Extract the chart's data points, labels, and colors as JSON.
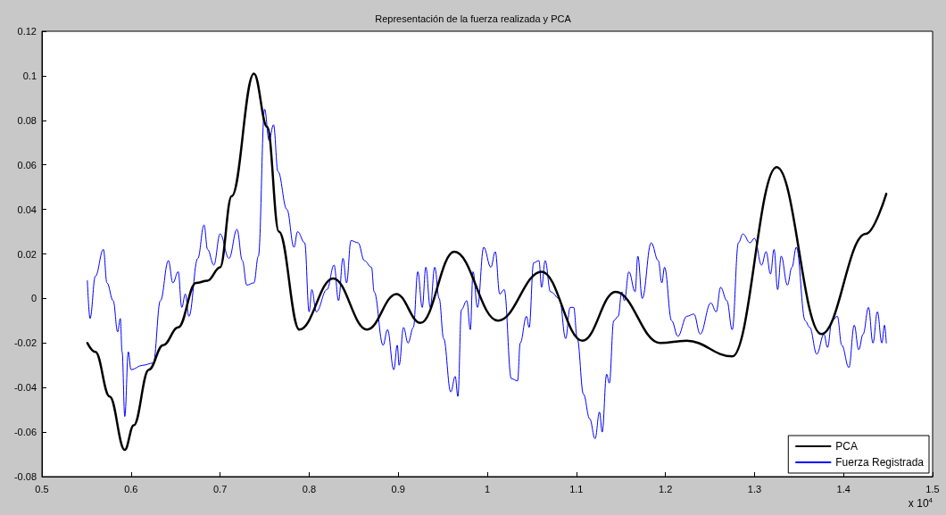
{
  "chart_data": {
    "type": "line",
    "title": "Representación de la fuerza realizada y PCA",
    "xlim": [
      0.5,
      1.5
    ],
    "xticks": [
      0.5,
      0.6,
      0.7,
      0.8,
      0.9,
      1,
      1.1,
      1.2,
      1.3,
      1.4,
      1.5
    ],
    "ylim": [
      -0.08,
      0.12
    ],
    "yticks": [
      -0.08,
      -0.06,
      -0.04,
      -0.02,
      0,
      0.02,
      0.04,
      0.06,
      0.08,
      0.1,
      0.12
    ],
    "annotations": [
      "x 10$^{4}$"
    ],
    "legend": "bottom right",
    "grid": false,
    "marker": "none",
    "line_style": "solid",
    "series": [
      {
        "name": "PCA",
        "color": "#000000",
        "x": [
          0.551,
          0.56,
          0.576,
          0.593,
          0.603,
          0.62,
          0.636,
          0.653,
          0.673,
          0.686,
          0.7,
          0.713,
          0.738,
          0.753,
          0.766,
          0.789,
          0.827,
          0.865,
          0.898,
          0.925,
          0.963,
          1.012,
          1.061,
          1.107,
          1.144,
          1.194,
          1.224,
          1.275,
          1.325,
          1.375,
          1.425,
          1.448
        ],
        "values": [
          -0.02,
          -0.024,
          -0.044,
          -0.068,
          -0.057,
          -0.032,
          -0.021,
          -0.013,
          0.007,
          0.008,
          0.014,
          0.046,
          0.101,
          0.077,
          0.03,
          -0.014,
          0.009,
          -0.014,
          0.002,
          -0.011,
          0.021,
          -0.01,
          0.012,
          -0.019,
          0.003,
          -0.02,
          -0.019,
          -0.026,
          0.059,
          -0.016,
          0.029,
          0.047
        ]
      },
      {
        "name": "Fuerza Registrada",
        "color": "#0000ff",
        "x": [
          0.551,
          0.554,
          0.56,
          0.569,
          0.573,
          0.58,
          0.585,
          0.588,
          0.59,
          0.593,
          0.597,
          0.6,
          0.613,
          0.625,
          0.633,
          0.642,
          0.647,
          0.653,
          0.657,
          0.661,
          0.665,
          0.675,
          0.682,
          0.686,
          0.693,
          0.7,
          0.71,
          0.719,
          0.725,
          0.73,
          0.738,
          0.743,
          0.75,
          0.755,
          0.76,
          0.765,
          0.775,
          0.783,
          0.787,
          0.795,
          0.8,
          0.803,
          0.808,
          0.82,
          0.828,
          0.833,
          0.838,
          0.842,
          0.847,
          0.855,
          0.862,
          0.87,
          0.873,
          0.883,
          0.888,
          0.895,
          0.899,
          0.901,
          0.906,
          0.911,
          0.917,
          0.922,
          0.927,
          0.931,
          0.936,
          0.941,
          0.946,
          0.951,
          0.959,
          0.964,
          0.967,
          0.971,
          0.977,
          0.981,
          0.984,
          0.989,
          0.996,
          1.004,
          1.009,
          1.014,
          1.019,
          1.027,
          1.034,
          1.037,
          1.044,
          1.047,
          1.052,
          1.058,
          1.061,
          1.065,
          1.071,
          1.081,
          1.088,
          1.093,
          1.097,
          1.101,
          1.108,
          1.115,
          1.121,
          1.126,
          1.129,
          1.134,
          1.137,
          1.142,
          1.147,
          1.151,
          1.154,
          1.159,
          1.166,
          1.169,
          1.174,
          1.184,
          1.192,
          1.196,
          1.199,
          1.207,
          1.214,
          1.224,
          1.232,
          1.239,
          1.251,
          1.257,
          1.262,
          1.269,
          1.275,
          1.282,
          1.287,
          1.295,
          1.3,
          1.308,
          1.313,
          1.318,
          1.322,
          1.326,
          1.33,
          1.337,
          1.342,
          1.347,
          1.357,
          1.362,
          1.37,
          1.378,
          1.382,
          1.387,
          1.393,
          1.398,
          1.406,
          1.412,
          1.417,
          1.422,
          1.428,
          1.433,
          1.438,
          1.443,
          1.446,
          1.448
        ],
        "values": [
          0.008,
          -0.009,
          0.01,
          0.022,
          0.007,
          -0.001,
          -0.015,
          -0.009,
          -0.024,
          -0.053,
          -0.024,
          -0.032,
          -0.03,
          -0.029,
          -0.001,
          0.017,
          0.007,
          0.012,
          -0.004,
          0.002,
          -0.008,
          0.018,
          0.033,
          0.022,
          0.015,
          0.029,
          0.018,
          0.031,
          0.017,
          0.006,
          0.007,
          0.019,
          0.085,
          0.071,
          0.078,
          0.057,
          0.04,
          0.023,
          0.03,
          0.025,
          -0.006,
          0.004,
          -0.006,
          0.004,
          0.015,
          -0.001,
          0.018,
          0.007,
          0.026,
          0.025,
          0.017,
          0.014,
          0.003,
          -0.021,
          -0.014,
          -0.032,
          -0.021,
          -0.03,
          -0.013,
          -0.02,
          -0.013,
          0.012,
          -0.004,
          0.014,
          -0.004,
          0.014,
          0.0,
          -0.018,
          -0.042,
          -0.035,
          -0.044,
          -0.005,
          -0.001,
          -0.014,
          0.012,
          -0.004,
          0.023,
          0.014,
          0.021,
          0.002,
          0.004,
          -0.036,
          -0.037,
          -0.02,
          -0.008,
          -0.013,
          0.016,
          0.017,
          0.005,
          0.017,
          0.003,
          0.0,
          -0.018,
          -0.004,
          -0.004,
          -0.018,
          -0.043,
          -0.054,
          -0.063,
          -0.051,
          -0.06,
          -0.034,
          -0.038,
          -0.01,
          -0.008,
          0.003,
          -0.001,
          0.012,
          0.003,
          0.019,
          0.0,
          0.025,
          0.017,
          0.007,
          0.014,
          -0.01,
          -0.017,
          -0.008,
          -0.007,
          -0.016,
          -0.002,
          -0.006,
          0.005,
          -0.001,
          -0.014,
          0.025,
          0.029,
          0.025,
          0.027,
          0.015,
          0.021,
          0.011,
          0.022,
          0.004,
          0.019,
          0.006,
          0.014,
          0.023,
          -0.01,
          -0.013,
          -0.025,
          -0.016,
          -0.022,
          -0.01,
          -0.008,
          -0.021,
          -0.031,
          -0.012,
          -0.023,
          -0.016,
          -0.004,
          -0.02,
          -0.006,
          -0.02,
          -0.012,
          -0.02
        ]
      }
    ]
  }
}
